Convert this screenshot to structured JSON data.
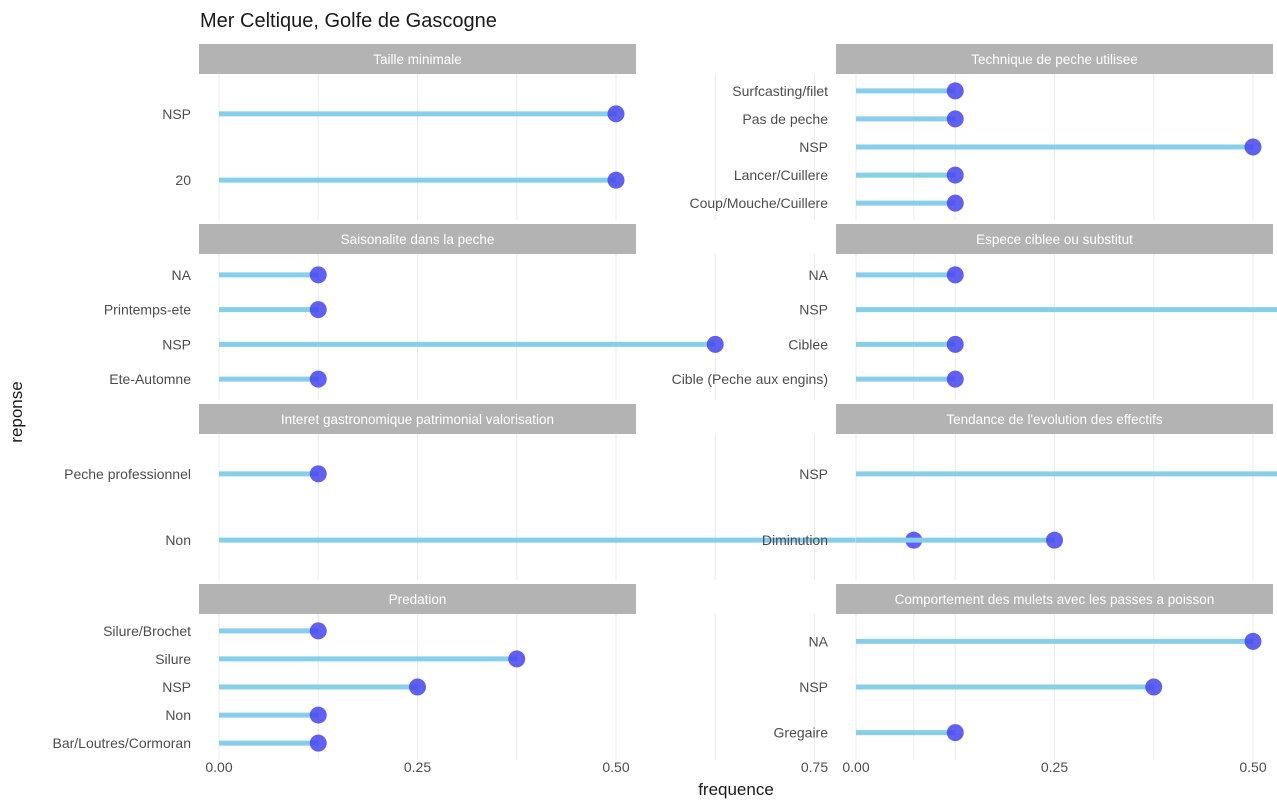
{
  "chart_data": {
    "type": "lollipop",
    "title": "Mer Celtique, Golfe de Gascogne",
    "xlabel": "frequence",
    "ylabel": "reponse",
    "xlim": [
      -0.02,
      0.92
    ],
    "x_ticks": [
      0.0,
      0.25,
      0.5,
      0.75
    ],
    "x_tick_labels": [
      "0.00",
      "0.25",
      "0.50",
      "0.75"
    ],
    "grid": true,
    "colors": {
      "stem": "#87CEEB",
      "point": "#4444EE",
      "strip": "#B3B3B3",
      "grid": "#EBEBEB"
    },
    "panels": [
      {
        "title": "Taille minimale",
        "categories": [
          "NSP",
          "20"
        ],
        "values": [
          0.5,
          0.5
        ]
      },
      {
        "title": "Technique de peche utilisee",
        "categories": [
          "Surfcasting/filet",
          "Pas de peche",
          "NSP",
          "Lancer/Cuillere",
          "Coup/Mouche/Cuillere"
        ],
        "values": [
          0.125,
          0.125,
          0.5,
          0.125,
          0.125
        ]
      },
      {
        "title": "Saisonalite dans la peche",
        "categories": [
          "NA",
          "Printemps-ete",
          "NSP",
          "Ete-Automne"
        ],
        "values": [
          0.125,
          0.125,
          0.625,
          0.125
        ]
      },
      {
        "title": "Espece ciblee ou substitut",
        "categories": [
          "NA",
          "NSP",
          "Ciblee",
          "Cible (Peche aux engins)"
        ],
        "values": [
          0.125,
          0.625,
          0.125,
          0.125
        ]
      },
      {
        "title": "Interet gastronomique patrimonial valorisation",
        "categories": [
          "Peche professionnel",
          "Non"
        ],
        "values": [
          0.125,
          0.875
        ]
      },
      {
        "title": "Tendance de l'evolution des effectifs",
        "categories": [
          "NSP",
          "Diminution"
        ],
        "values": [
          0.75,
          0.25
        ]
      },
      {
        "title": "Predation",
        "categories": [
          "Silure/Brochet",
          "Silure",
          "NSP",
          "Non",
          "Bar/Loutres/Cormoran"
        ],
        "values": [
          0.125,
          0.375,
          0.25,
          0.125,
          0.125
        ]
      },
      {
        "title": "Comportement des mulets avec les passes a poisson",
        "categories": [
          "NA",
          "NSP",
          "Gregaire"
        ],
        "values": [
          0.5,
          0.375,
          0.125
        ]
      }
    ]
  }
}
